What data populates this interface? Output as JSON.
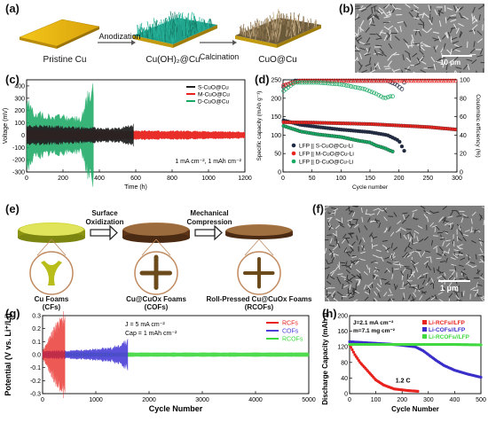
{
  "panels": {
    "a": "(a)",
    "b": "(b)",
    "c": "(c)",
    "d": "(d)",
    "e": "(e)",
    "f": "(f)",
    "g": "(g)",
    "h": "(h)"
  },
  "schematic_a": {
    "labels": [
      "Pristine Cu",
      "Cu(OH)₂@Cu",
      "CuO@Cu"
    ],
    "steps": [
      "Anodization",
      "Calcination"
    ]
  },
  "sem_b": {
    "scale": "10 μm"
  },
  "sem_f": {
    "scale": "1 μm"
  },
  "schematic_e": {
    "labels": [
      "Cu Foams",
      "(CFs)",
      "Cu@CuOx Foams",
      "(COFs)",
      "Roll-Pressed Cu@CuOx Foams",
      "(RCOFs)"
    ],
    "steps": [
      "Surface",
      "Oxidization",
      "Mechanical",
      "Compression"
    ]
  },
  "chart_data": [
    {
      "id": "c",
      "type": "line",
      "xlabel": "Time (h)",
      "ylabel": "Voltage (mV)",
      "xlim": [
        0,
        1200
      ],
      "ylim": [
        -300,
        450
      ],
      "xticks": [
        0,
        200,
        400,
        600,
        800,
        1000,
        1200
      ],
      "yticks": [
        -300,
        -200,
        -100,
        0,
        100,
        200,
        300,
        400
      ],
      "annotation": "1 mA cm⁻², 1 mAh cm⁻²",
      "legend": "top-right",
      "series": [
        {
          "name": "S-CuO@Cu",
          "color": "#222222",
          "end_h": 590,
          "amplitude": [
            [
              0,
              90
            ],
            [
              300,
              70
            ],
            [
              500,
              60
            ],
            [
              590,
              100
            ]
          ]
        },
        {
          "name": "M-CuO@Cu",
          "color": "#e8221d",
          "end_h": 1200,
          "amplitude": [
            [
              0,
              50
            ],
            [
              600,
              40
            ],
            [
              1200,
              30
            ]
          ]
        },
        {
          "name": "D-CuO@Cu",
          "color": "#17a862",
          "end_h": 370,
          "amplitude": [
            [
              0,
              320
            ],
            [
              50,
              200
            ],
            [
              300,
              150
            ],
            [
              345,
              420
            ],
            [
              370,
              420
            ]
          ]
        }
      ]
    },
    {
      "id": "d",
      "type": "scatter",
      "xlabel": "Cycle number",
      "ylabel": "Specific capacity (mAh g⁻¹)",
      "y2label": "Coulombic efficiency (%)",
      "xlim": [
        0,
        300
      ],
      "ylim": [
        0,
        250
      ],
      "y2lim": [
        0,
        100
      ],
      "xticks": [
        0,
        50,
        100,
        150,
        200,
        250,
        300
      ],
      "yticks": [
        0,
        50,
        100,
        150,
        200,
        250
      ],
      "y2ticks": [
        0,
        20,
        40,
        60,
        80,
        100
      ],
      "legend": "bottom-left",
      "series": [
        {
          "name": "LFP || S-CuO@Cu-Li",
          "color": "#1f2a44",
          "capacity": [
            [
              1,
              140
            ],
            [
              30,
              128
            ],
            [
              60,
              122
            ],
            [
              100,
              115
            ],
            [
              150,
              108
            ],
            [
              180,
              100
            ],
            [
              200,
              85
            ],
            [
              208,
              60
            ],
            [
              212,
              50
            ]
          ],
          "ce": [
            [
              1,
              92
            ],
            [
              20,
              99
            ],
            [
              100,
              99
            ],
            [
              180,
              99
            ],
            [
              195,
              95
            ],
            [
              205,
              90
            ],
            [
              210,
              99
            ]
          ]
        },
        {
          "name": "LFP || M-CuO@Cu-Li",
          "color": "#e8221d",
          "capacity": [
            [
              1,
              135
            ],
            [
              50,
              134
            ],
            [
              100,
              132
            ],
            [
              150,
              130
            ],
            [
              200,
              126
            ],
            [
              250,
              122
            ],
            [
              300,
              115
            ]
          ],
          "ce": [
            [
              1,
              94
            ],
            [
              30,
              99
            ],
            [
              150,
              99
            ],
            [
              300,
              99
            ]
          ]
        },
        {
          "name": "LFP || D-CuO@Cu-Li",
          "color": "#17a862",
          "capacity": [
            [
              1,
              125
            ],
            [
              30,
              110
            ],
            [
              60,
              102
            ],
            [
              100,
              95
            ],
            [
              130,
              85
            ],
            [
              150,
              80
            ],
            [
              160,
              72
            ],
            [
              175,
              65
            ],
            [
              185,
              58
            ],
            [
              190,
              55
            ]
          ],
          "ce": [
            [
              1,
              88
            ],
            [
              20,
              97
            ],
            [
              60,
              97
            ],
            [
              100,
              95
            ],
            [
              140,
              90
            ],
            [
              160,
              85
            ],
            [
              175,
              80
            ],
            [
              185,
              82
            ]
          ]
        }
      ]
    },
    {
      "id": "g",
      "type": "line",
      "xlabel": "Cycle Number",
      "ylabel": "Potential (V vs. Li⁺/Li)",
      "xlim": [
        0,
        5000
      ],
      "ylim": [
        -0.3,
        0.3
      ],
      "xticks": [
        0,
        1000,
        2000,
        3000,
        4000,
        5000
      ],
      "yticks": [
        -0.3,
        -0.2,
        -0.1,
        0.0,
        0.1,
        0.2,
        0.3
      ],
      "annotation": [
        "J = 5 mA cm⁻²",
        "Cap = 1 mAh cm⁻²"
      ],
      "legend": "top-right",
      "series": [
        {
          "name": "RCFs",
          "color": "#e8221d",
          "end": 420,
          "amplitude": [
            [
              0,
              0.03
            ],
            [
              100,
              0.12
            ],
            [
              250,
              0.25
            ],
            [
              420,
              0.35
            ]
          ]
        },
        {
          "name": "COFs",
          "color": "#4b3fd6",
          "end": 1600,
          "amplitude": [
            [
              0,
              0.03
            ],
            [
              800,
              0.04
            ],
            [
              1300,
              0.06
            ],
            [
              1600,
              0.12
            ]
          ]
        },
        {
          "name": "RCOFs",
          "color": "#3fd83f",
          "end": 5000,
          "amplitude": [
            [
              0,
              0.015
            ],
            [
              5000,
              0.015
            ]
          ]
        }
      ]
    },
    {
      "id": "h",
      "type": "line",
      "xlabel": "Cycle Number",
      "ylabel": "Discharge Capacity (mAh g⁻¹)",
      "xlim": [
        0,
        500
      ],
      "ylim": [
        0,
        200
      ],
      "xticks": [
        0,
        100,
        200,
        300,
        400,
        500
      ],
      "yticks": [
        0,
        40,
        80,
        120,
        160,
        200
      ],
      "annotation": [
        "J=2.1 mA cm⁻²",
        "m=7.1 mg cm⁻²",
        "1.2 C"
      ],
      "legend": "top-right",
      "series": [
        {
          "name": "Li-RCFs//LFP",
          "color": "#e8221d",
          "points": [
            [
              0,
              125
            ],
            [
              20,
              100
            ],
            [
              40,
              80
            ],
            [
              60,
              65
            ],
            [
              80,
              50
            ],
            [
              100,
              35
            ],
            [
              130,
              22
            ],
            [
              170,
              12
            ],
            [
              220,
              8
            ],
            [
              260,
              6
            ]
          ]
        },
        {
          "name": "Li-COFs//LFP",
          "color": "#3a2fc8",
          "points": [
            [
              0,
              133
            ],
            [
              50,
              131
            ],
            [
              100,
              129
            ],
            [
              150,
              127
            ],
            [
              200,
              124
            ],
            [
              250,
              120
            ],
            [
              280,
              110
            ],
            [
              300,
              100
            ],
            [
              330,
              85
            ],
            [
              360,
              72
            ],
            [
              400,
              60
            ],
            [
              450,
              50
            ],
            [
              500,
              42
            ]
          ]
        },
        {
          "name": "Li-RCOFs//LFP",
          "color": "#3fd83f",
          "points": [
            [
              0,
              126
            ],
            [
              100,
              126
            ],
            [
              200,
              126
            ],
            [
              300,
              126
            ],
            [
              400,
              126
            ],
            [
              500,
              125
            ]
          ]
        }
      ]
    }
  ]
}
